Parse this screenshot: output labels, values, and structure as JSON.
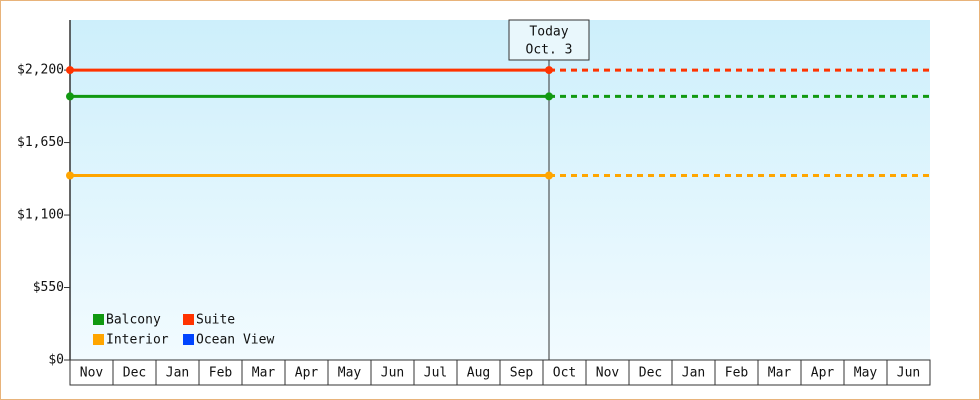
{
  "chart_data": {
    "type": "line",
    "categories": [
      "Nov",
      "Dec",
      "Jan",
      "Feb",
      "Mar",
      "Apr",
      "May",
      "Jun",
      "Jul",
      "Aug",
      "Sep",
      "Oct",
      "Nov",
      "Dec",
      "Jan",
      "Feb",
      "Mar",
      "Apr",
      "May",
      "Jun"
    ],
    "series": [
      {
        "name": "Balcony",
        "color": "#119911",
        "values": [
          2000,
          2000,
          2000,
          2000,
          2000,
          2000,
          2000,
          2000,
          2000,
          2000,
          2000,
          2000,
          null,
          null,
          null,
          null,
          null,
          null,
          null,
          null
        ]
      },
      {
        "name": "Suite",
        "color": "#ff3300",
        "values": [
          2200,
          2200,
          2200,
          2200,
          2200,
          2200,
          2200,
          2200,
          2200,
          2200,
          2200,
          2200,
          null,
          null,
          null,
          null,
          null,
          null,
          null,
          null
        ]
      },
      {
        "name": "Interior",
        "color": "#ffa500",
        "values": [
          1400,
          1400,
          1400,
          1400,
          1400,
          1400,
          1400,
          1400,
          1400,
          1400,
          1400,
          1400,
          null,
          null,
          null,
          null,
          null,
          null,
          null,
          null
        ]
      },
      {
        "name": "Ocean View",
        "color": "#0044ff",
        "values": [
          null,
          null,
          null,
          null,
          null,
          null,
          null,
          null,
          null,
          null,
          null,
          null,
          null,
          null,
          null,
          null,
          null,
          null,
          null,
          null
        ]
      }
    ],
    "ylim": [
      0,
      2580
    ],
    "yticks": [
      {
        "value": 0,
        "label": "$0"
      },
      {
        "value": 550,
        "label": "$550"
      },
      {
        "value": 1100,
        "label": "$1,100"
      },
      {
        "value": 1650,
        "label": "$1,650"
      },
      {
        "value": 2200,
        "label": "$2,200"
      }
    ],
    "annotation": {
      "lines": [
        "Today",
        "Oct. 3"
      ],
      "category_index": 11
    }
  }
}
